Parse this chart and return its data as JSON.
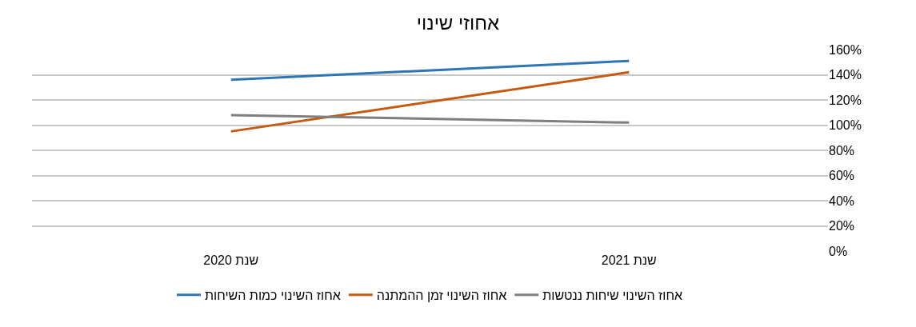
{
  "chart_data": {
    "type": "line",
    "title": "אחוזי שינוי",
    "categories": [
      "שנת 2020",
      "שנת 2021"
    ],
    "series": [
      {
        "name": "אחוז השינוי כמות השיחות",
        "color": "#2e75b6",
        "values": [
          136,
          151
        ]
      },
      {
        "name": "אחוז השינוי זמן ההמתנה",
        "color": "#c55a11",
        "values": [
          95,
          142
        ]
      },
      {
        "name": "אחוז השינוי שיחות ננטשות",
        "color": "#7f7f7f",
        "values": [
          108,
          102
        ]
      }
    ],
    "ylim": [
      0,
      160
    ],
    "yticks": [
      {
        "value": 0,
        "label": "0%"
      },
      {
        "value": 20,
        "label": "20%"
      },
      {
        "value": 40,
        "label": "40%"
      },
      {
        "value": 60,
        "label": "60%"
      },
      {
        "value": 80,
        "label": "80%"
      },
      {
        "value": 100,
        "label": "100%"
      },
      {
        "value": 120,
        "label": "120%"
      },
      {
        "value": 140,
        "label": "140%"
      },
      {
        "value": 160,
        "label": "160%"
      }
    ],
    "grid": "y",
    "legend": "bottom",
    "marker": "none",
    "line_style": "solid"
  }
}
